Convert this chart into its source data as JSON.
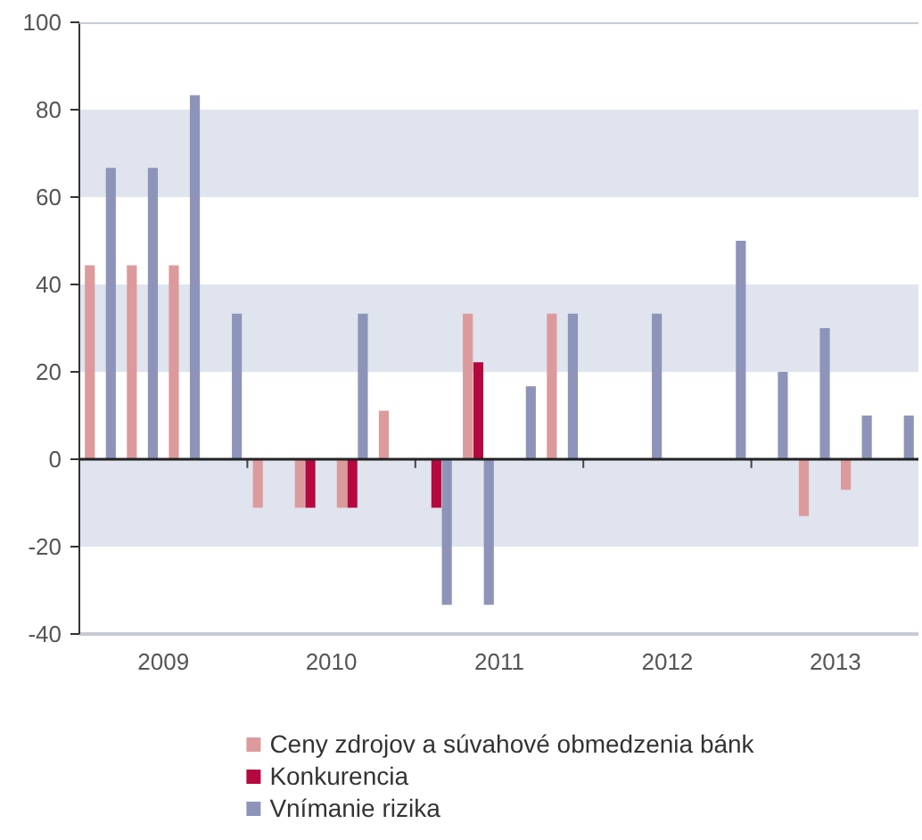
{
  "chart_data": {
    "type": "bar",
    "x": [
      2009.125,
      2009.375,
      2009.625,
      2009.875,
      2010.125,
      2010.375,
      2010.625,
      2010.875,
      2011.125,
      2011.375,
      2011.625,
      2011.875,
      2012.125,
      2012.375,
      2012.625,
      2012.875,
      2013.125,
      2013.375,
      2013.625,
      2013.875
    ],
    "series": [
      {
        "name": "Ceny zdrojov a súvahové obmedzenia bánk",
        "color": "#dc9a9c",
        "values": [
          44.4,
          44.4,
          44.4,
          null,
          -11.1,
          -11.1,
          -11.1,
          11.1,
          null,
          33.3,
          null,
          33.3,
          null,
          null,
          null,
          null,
          null,
          -13,
          -7,
          null
        ]
      },
      {
        "name": "Konkurencia",
        "color": "#b5083f",
        "values": [
          null,
          null,
          null,
          null,
          null,
          -11.1,
          -11.1,
          null,
          -11.1,
          22.2,
          null,
          null,
          null,
          null,
          null,
          null,
          null,
          null,
          null,
          null
        ]
      },
      {
        "name": "Vnímanie rizika",
        "color": "#8e94b9",
        "values": [
          66.7,
          66.7,
          83.3,
          33.3,
          null,
          null,
          33.3,
          null,
          -33.3,
          -33.3,
          16.7,
          33.3,
          null,
          33.3,
          null,
          50,
          20,
          30,
          10,
          10
        ]
      }
    ],
    "xlim": [
      2009,
      2014
    ],
    "xticks": [
      {
        "value": 2009.5,
        "label": "2009"
      },
      {
        "value": 2010,
        "label": null
      },
      {
        "value": 2010.5,
        "label": "2010"
      },
      {
        "value": 2011,
        "label": null
      },
      {
        "value": 2011.5,
        "label": "2011"
      },
      {
        "value": 2012,
        "label": null
      },
      {
        "value": 2012.5,
        "label": "2012"
      },
      {
        "value": 2013,
        "label": null
      },
      {
        "value": 2013.5,
        "label": "2013"
      }
    ],
    "ylim": [
      -40,
      100
    ],
    "yticks": [
      -40,
      -20,
      0,
      20,
      40,
      60,
      80,
      100
    ],
    "grid": "y",
    "legend": "bottom"
  }
}
